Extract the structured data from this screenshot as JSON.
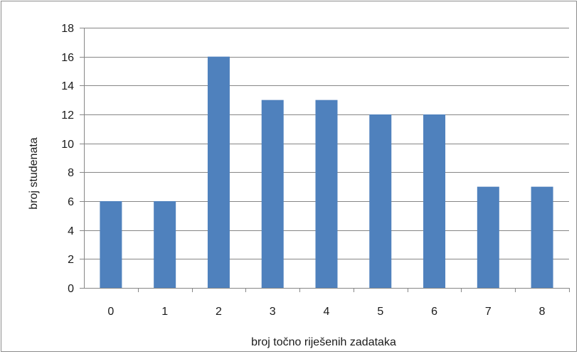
{
  "chart_data": {
    "type": "bar",
    "title": "",
    "xlabel": "broj točno riješenih zadataka",
    "ylabel": "broj studenata",
    "categories": [
      "0",
      "1",
      "2",
      "3",
      "4",
      "5",
      "6",
      "7",
      "8"
    ],
    "values": [
      6,
      6,
      16,
      13,
      13,
      12,
      12,
      7,
      7
    ],
    "ylim": [
      0,
      18
    ],
    "yticks": [
      0,
      2,
      4,
      6,
      8,
      10,
      12,
      14,
      16,
      18
    ],
    "grid": true,
    "legend": "none",
    "bar_color": "#4f81bd",
    "grid_color": "#868686"
  }
}
